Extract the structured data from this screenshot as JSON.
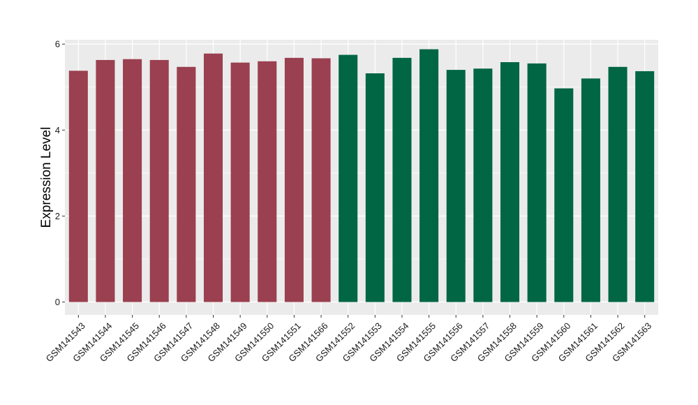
{
  "colors": {
    "panel_background": "#EBEBEB",
    "gridline": "#FFFFFF",
    "group_1": "#9A4050",
    "group_2": "#006644"
  },
  "chart_data": {
    "type": "bar",
    "xlabel": "",
    "ylabel": "Expression Level",
    "ylim": [
      -0.3,
      6.1
    ],
    "yticks": [
      0,
      2,
      4,
      6
    ],
    "grid": true,
    "legend": "none",
    "categories": [
      "GSM141543",
      "GSM141544",
      "GSM141545",
      "GSM141546",
      "GSM141547",
      "GSM141548",
      "GSM141549",
      "GSM141550",
      "GSM141551",
      "GSM141566",
      "GSM141552",
      "GSM141553",
      "GSM141554",
      "GSM141555",
      "GSM141556",
      "GSM141557",
      "GSM141558",
      "GSM141559",
      "GSM141560",
      "GSM141561",
      "GSM141562",
      "GSM141563"
    ],
    "values": [
      5.38,
      5.63,
      5.65,
      5.63,
      5.47,
      5.78,
      5.57,
      5.6,
      5.68,
      5.67,
      5.75,
      5.32,
      5.68,
      5.88,
      5.4,
      5.43,
      5.58,
      5.55,
      4.97,
      5.2,
      5.47,
      5.37
    ],
    "bar_groups": [
      1,
      1,
      1,
      1,
      1,
      1,
      1,
      1,
      1,
      1,
      2,
      2,
      2,
      2,
      2,
      2,
      2,
      2,
      2,
      2,
      2,
      2
    ]
  }
}
